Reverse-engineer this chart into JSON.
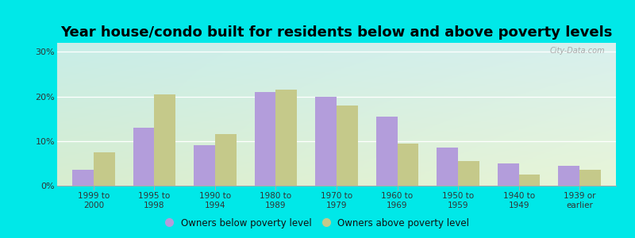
{
  "title": "Year house/condo built for residents below and above poverty levels",
  "categories": [
    "1999 to\n2000",
    "1995 to\n1998",
    "1990 to\n1994",
    "1980 to\n1989",
    "1970 to\n1979",
    "1960 to\n1969",
    "1950 to\n1959",
    "1940 to\n1949",
    "1939 or\nearlier"
  ],
  "below_poverty": [
    3.5,
    13.0,
    9.0,
    21.0,
    20.0,
    15.5,
    8.5,
    5.0,
    4.5
  ],
  "above_poverty": [
    7.5,
    20.5,
    11.5,
    21.5,
    18.0,
    9.5,
    5.5,
    2.5,
    3.5
  ],
  "below_color": "#b39ddb",
  "above_color": "#c5c98a",
  "background_outer": "#00e8e8",
  "bg_top_left": "#c8ede8",
  "bg_top_right": "#d8f0ee",
  "bg_bottom_left": "#d8edcf",
  "bg_bottom_right": "#e8f5d8",
  "yticks": [
    0,
    10,
    20,
    30
  ],
  "ylim": [
    0,
    32
  ],
  "bar_width": 0.35,
  "title_fontsize": 13,
  "legend_below_label": "Owners below poverty level",
  "legend_above_label": "Owners above poverty level",
  "watermark": "City-Data.com"
}
